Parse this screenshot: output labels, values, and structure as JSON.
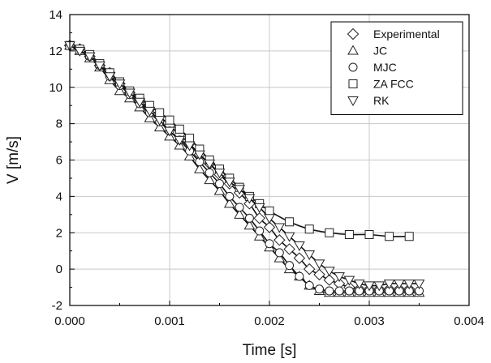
{
  "chart_data": {
    "type": "scatter",
    "xlabel": "Time [s]",
    "ylabel": "V [m/s]",
    "xlim": [
      0,
      0.004
    ],
    "ylim": [
      -2,
      14
    ],
    "x_ticks": [
      0.0,
      0.001,
      0.002,
      0.003,
      0.004
    ],
    "x_tick_labels": [
      "0.000",
      "0.001",
      "0.002",
      "0.003",
      "0.004"
    ],
    "y_ticks": [
      -2,
      0,
      2,
      4,
      6,
      8,
      10,
      12,
      14
    ],
    "y_tick_labels": [
      "-2",
      "0",
      "2",
      "4",
      "6",
      "8",
      "10",
      "12",
      "14"
    ],
    "grid": true,
    "legend_position": "top-right",
    "series": [
      {
        "name": "Experimental",
        "marker": "diamond",
        "x": [
          0.0,
          0.0001,
          0.0002,
          0.0003,
          0.0004,
          0.0005,
          0.0006,
          0.0007,
          0.0008,
          0.0009,
          0.001,
          0.0011,
          0.0012,
          0.0013,
          0.0014,
          0.0015,
          0.0016,
          0.0017,
          0.0018,
          0.0019,
          0.002,
          0.0021,
          0.0022,
          0.0023,
          0.0024,
          0.0025,
          0.0026,
          0.0027,
          0.0028,
          0.0029,
          0.003,
          0.0031,
          0.0032,
          0.0033,
          0.0034
        ],
        "y": [
          12.3,
          12.1,
          11.7,
          11.2,
          10.8,
          10.2,
          9.7,
          9.3,
          8.8,
          8.4,
          7.9,
          7.4,
          6.9,
          6.3,
          5.8,
          5.2,
          4.7,
          4.2,
          3.6,
          2.8,
          2.3,
          1.6,
          1.1,
          0.6,
          0.0,
          -0.3,
          -0.6,
          -0.8,
          -1.0,
          -1.1,
          -1.1,
          -1.1,
          -1.1,
          -1.1,
          -1.1
        ]
      },
      {
        "name": "JC",
        "marker": "triangle-up",
        "x": [
          0.0,
          0.0001,
          0.0002,
          0.0003,
          0.0004,
          0.0005,
          0.0006,
          0.0007,
          0.0008,
          0.0009,
          0.001,
          0.0011,
          0.0012,
          0.0013,
          0.0014,
          0.0015,
          0.0016,
          0.0017,
          0.0018,
          0.0019,
          0.002,
          0.0021,
          0.0022,
          0.0023,
          0.0024,
          0.0025,
          0.0026,
          0.0027,
          0.0028,
          0.0029,
          0.003,
          0.0031,
          0.0032,
          0.0033,
          0.0034,
          0.0035
        ],
        "y": [
          12.3,
          12.0,
          11.6,
          11.1,
          10.4,
          9.8,
          9.4,
          8.9,
          8.3,
          7.8,
          7.3,
          6.8,
          6.2,
          5.5,
          4.9,
          4.3,
          3.6,
          3.0,
          2.4,
          1.8,
          1.2,
          0.6,
          0.0,
          -0.4,
          -0.9,
          -1.2,
          -1.3,
          -1.3,
          -1.3,
          -1.3,
          -1.3,
          -1.3,
          -1.3,
          -1.3,
          -1.3,
          -1.3
        ]
      },
      {
        "name": "MJC",
        "marker": "circle",
        "x": [
          0.0,
          0.0001,
          0.0002,
          0.0003,
          0.0004,
          0.0005,
          0.0006,
          0.0007,
          0.0008,
          0.0009,
          0.001,
          0.0011,
          0.0012,
          0.0013,
          0.0014,
          0.0015,
          0.0016,
          0.0017,
          0.0018,
          0.0019,
          0.002,
          0.0021,
          0.0022,
          0.0023,
          0.0024,
          0.0025,
          0.0026,
          0.0027,
          0.0028,
          0.0029,
          0.003,
          0.0031,
          0.0032,
          0.0033,
          0.0034,
          0.0035
        ],
        "y": [
          12.3,
          12.1,
          11.7,
          11.2,
          10.6,
          10.1,
          9.6,
          9.1,
          8.6,
          8.1,
          7.6,
          7.1,
          6.5,
          5.9,
          5.3,
          4.7,
          4.0,
          3.4,
          2.8,
          2.1,
          1.4,
          0.9,
          0.2,
          -0.4,
          -0.9,
          -1.1,
          -1.2,
          -1.2,
          -1.2,
          -1.2,
          -1.2,
          -1.2,
          -1.2,
          -1.2,
          -1.2,
          -1.2
        ]
      },
      {
        "name": "ZA FCC",
        "marker": "square",
        "x": [
          0.0,
          0.0001,
          0.0002,
          0.0003,
          0.0004,
          0.0005,
          0.0006,
          0.0007,
          0.0008,
          0.0009,
          0.001,
          0.0011,
          0.0012,
          0.0013,
          0.0014,
          0.0015,
          0.0016,
          0.0017,
          0.0018,
          0.0019,
          0.002,
          0.0022,
          0.0024,
          0.0026,
          0.0028,
          0.003,
          0.0032,
          0.0034
        ],
        "y": [
          12.3,
          12.1,
          11.8,
          11.3,
          10.8,
          10.3,
          9.8,
          9.4,
          9.0,
          8.6,
          8.2,
          7.7,
          7.2,
          6.6,
          6.0,
          5.5,
          5.0,
          4.5,
          4.0,
          3.6,
          3.2,
          2.6,
          2.2,
          2.0,
          1.9,
          1.9,
          1.8,
          1.8
        ]
      },
      {
        "name": "RK",
        "marker": "triangle-down",
        "x": [
          0.0,
          0.0001,
          0.0002,
          0.0003,
          0.0004,
          0.0005,
          0.0006,
          0.0007,
          0.0008,
          0.0009,
          0.001,
          0.0011,
          0.0012,
          0.0013,
          0.0014,
          0.0015,
          0.0016,
          0.0017,
          0.0018,
          0.0019,
          0.002,
          0.0021,
          0.0022,
          0.0023,
          0.0024,
          0.0025,
          0.0026,
          0.0027,
          0.0028,
          0.0029,
          0.003,
          0.0031,
          0.0032,
          0.0033,
          0.0034,
          0.0035
        ],
        "y": [
          12.3,
          12.0,
          11.7,
          11.2,
          10.6,
          10.2,
          9.7,
          9.2,
          8.7,
          8.2,
          7.6,
          7.1,
          6.8,
          6.3,
          5.8,
          5.3,
          4.8,
          4.4,
          3.9,
          3.4,
          2.8,
          2.3,
          1.8,
          1.3,
          0.8,
          0.3,
          -0.1,
          -0.4,
          -0.6,
          -0.8,
          -0.9,
          -0.9,
          -0.8,
          -0.8,
          -0.8,
          -0.8
        ]
      }
    ]
  }
}
